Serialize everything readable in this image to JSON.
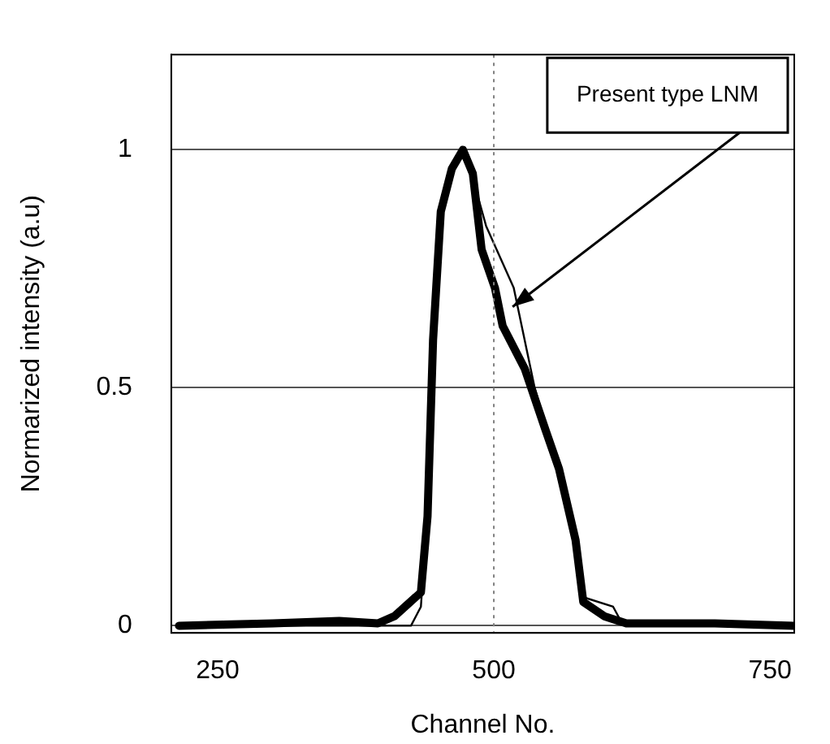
{
  "chart_data": {
    "type": "line",
    "xlabel": "Channel No.",
    "ylabel": "Normarized intensity (a.u)",
    "xlim": [
      208,
      772
    ],
    "xticks": [
      250,
      500,
      750
    ],
    "ylim": [
      -0.015,
      1.2
    ],
    "yticks": [
      0,
      0.5,
      1
    ],
    "grid": "y",
    "legend": false,
    "marker": "none",
    "ref_lines": [
      {
        "axis": "x",
        "value": 500,
        "line_style": "dotted",
        "color": "#808080"
      }
    ],
    "annotations": [
      {
        "text": "Present type LNM",
        "x": 517,
        "y": 0.67
      }
    ],
    "series": [
      {
        "color": "#000000",
        "x": [
          215,
          300,
          360,
          395,
          410,
          434,
          440,
          445,
          452,
          462,
          472,
          481,
          489,
          501,
          508,
          528,
          547,
          559,
          574,
          581,
          600,
          620,
          700,
          772
        ],
        "values": [
          0,
          0.005,
          0.01,
          0.005,
          0.02,
          0.07,
          0.23,
          0.6,
          0.87,
          0.96,
          1,
          0.95,
          0.79,
          0.71,
          0.63,
          0.54,
          0.41,
          0.33,
          0.18,
          0.05,
          0.02,
          0.005,
          0.005,
          0
        ]
      },
      {
        "color": "#000000",
        "x": [
          215,
          420,
          425,
          434,
          440,
          445,
          452,
          462,
          472,
          481,
          493,
          518,
          537,
          547,
          559,
          574,
          581,
          608,
          615,
          625,
          772
        ],
        "values": [
          0,
          0,
          0,
          0.04,
          0.25,
          0.62,
          0.88,
          0.97,
          1,
          0.94,
          0.84,
          0.71,
          0.5,
          0.42,
          0.33,
          0.18,
          0.06,
          0.04,
          0.01,
          0,
          0
        ]
      }
    ]
  }
}
